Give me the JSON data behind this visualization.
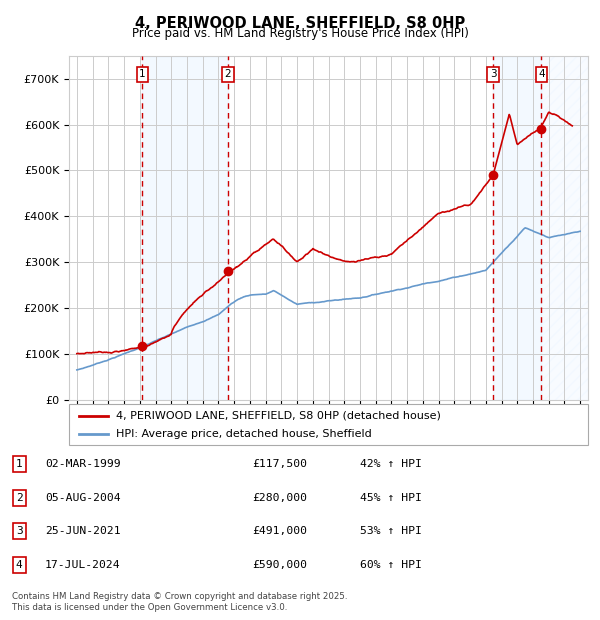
{
  "title": "4, PERIWOOD LANE, SHEFFIELD, S8 0HP",
  "subtitle": "Price paid vs. HM Land Registry's House Price Index (HPI)",
  "legend_line1": "4, PERIWOOD LANE, SHEFFIELD, S8 0HP (detached house)",
  "legend_line2": "HPI: Average price, detached house, Sheffield",
  "footer1": "Contains HM Land Registry data © Crown copyright and database right 2025.",
  "footer2": "This data is licensed under the Open Government Licence v3.0.",
  "table_rows": [
    {
      "num": "1",
      "date": "02-MAR-1999",
      "price": "£117,500",
      "hpi": "42% ↑ HPI"
    },
    {
      "num": "2",
      "date": "05-AUG-2004",
      "price": "£280,000",
      "hpi": "45% ↑ HPI"
    },
    {
      "num": "3",
      "date": "25-JUN-2021",
      "price": "£491,000",
      "hpi": "53% ↑ HPI"
    },
    {
      "num": "4",
      "date": "17-JUL-2024",
      "price": "£590,000",
      "hpi": "60% ↑ HPI"
    }
  ],
  "sale_dates_decimal": [
    1999.17,
    2004.59,
    2021.48,
    2024.54
  ],
  "sale_prices": [
    117500,
    280000,
    491000,
    590000
  ],
  "red_line_color": "#cc0000",
  "blue_line_color": "#6699cc",
  "marker_color": "#cc0000",
  "vline_color": "#cc0000",
  "grid_color": "#cccccc",
  "bg_color": "#ffffff",
  "plot_bg_color": "#ffffff",
  "shade_color": "#ddeeff",
  "ylim": [
    0,
    750000
  ],
  "yticks": [
    0,
    100000,
    200000,
    300000,
    400000,
    500000,
    600000,
    700000
  ],
  "xlim_start": 1994.5,
  "xlim_end": 2027.5,
  "xtick_years": [
    1995,
    1996,
    1997,
    1998,
    1999,
    2000,
    2001,
    2002,
    2003,
    2004,
    2005,
    2006,
    2007,
    2008,
    2009,
    2010,
    2011,
    2012,
    2013,
    2014,
    2015,
    2016,
    2017,
    2018,
    2019,
    2020,
    2021,
    2022,
    2023,
    2024,
    2025,
    2026,
    2027
  ]
}
